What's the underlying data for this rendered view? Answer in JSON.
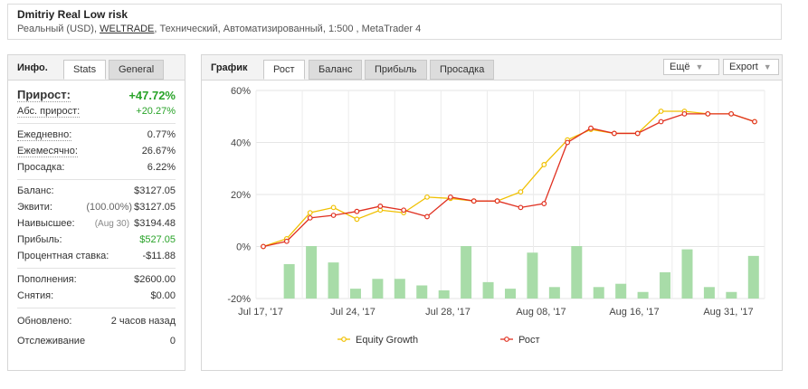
{
  "header": {
    "title": "Dmitriy Real Low risk",
    "subtitle_pre": "Реальный (USD), ",
    "broker": "WELTRADE",
    "subtitle_post": ", Технический, Автоматизированный, 1:500 , MetaTrader 4"
  },
  "info": {
    "label": "Инфо.",
    "tabs": [
      "Stats",
      "General"
    ],
    "growth_label": "Прирост:",
    "growth_value": "+47.72%",
    "abs_growth_label": "Абс. прирост:",
    "abs_growth_value": "+20.27%",
    "daily_label": "Ежедневно:",
    "daily_value": "0.77%",
    "monthly_label": "Ежемесячно:",
    "monthly_value": "26.67%",
    "drawdown_label": "Просадка:",
    "drawdown_value": "6.22%",
    "balance_label": "Баланс:",
    "balance_value": "$3127.05",
    "equity_label": "Эквити:",
    "equity_pct": "(100.00%)",
    "equity_value": "$3127.05",
    "highest_label": "Наивысшее:",
    "highest_date": "(Aug 30)",
    "highest_value": "$3194.48",
    "profit_label": "Прибыль:",
    "profit_value": "$527.05",
    "interest_label": "Процентная ставка:",
    "interest_value": "-$11.88",
    "deposits_label": "Пополнения:",
    "deposits_value": "$2600.00",
    "withdrawals_label": "Снятия:",
    "withdrawals_value": "$0.00",
    "updated_label": "Обновлено:",
    "updated_value": "2 часов назад",
    "tracking_label": "Отслеживание",
    "tracking_value": "0"
  },
  "chart_panel": {
    "label": "График",
    "tabs": [
      "Рост",
      "Баланс",
      "Прибыль",
      "Просадка"
    ],
    "more_label": "Ещё",
    "export_label": "Export"
  },
  "colors": {
    "equity": "#f0c000",
    "growth": "#e03020",
    "bars": "#a8dca8",
    "green_text": "#29a329"
  },
  "chart_data": {
    "type": "line",
    "y_ticks": [
      "60%",
      "40%",
      "20%",
      "0%",
      "-20%"
    ],
    "x_ticks": [
      "Jul 17, '17",
      "Jul 24, '17",
      "Jul 28, '17",
      "Aug 08, '17",
      "Aug 16, '17",
      "Aug 31, '17"
    ],
    "ylim": [
      -20,
      60
    ],
    "series": [
      {
        "name": "Equity Growth",
        "values": [
          0,
          3,
          13,
          15,
          10.5,
          14,
          13,
          19,
          18.5,
          17.5,
          17.5,
          21,
          31.5,
          41,
          45,
          43.5,
          43.5,
          52,
          52,
          51,
          51,
          48
        ]
      },
      {
        "name": "Рост",
        "values": [
          0,
          2,
          11,
          12,
          13.5,
          15.5,
          14,
          11.5,
          19,
          17.5,
          17.5,
          15,
          16.5,
          40,
          45.5,
          43.5,
          43.5,
          48,
          51,
          51,
          51,
          48
        ]
      }
    ],
    "bars": [
      0,
      10.5,
      16,
      11,
      3,
      6,
      6,
      4,
      2.5,
      16,
      5,
      3,
      14,
      3.5,
      16,
      3.5,
      4.5,
      2,
      8,
      15,
      3.5,
      2,
      13
    ]
  }
}
